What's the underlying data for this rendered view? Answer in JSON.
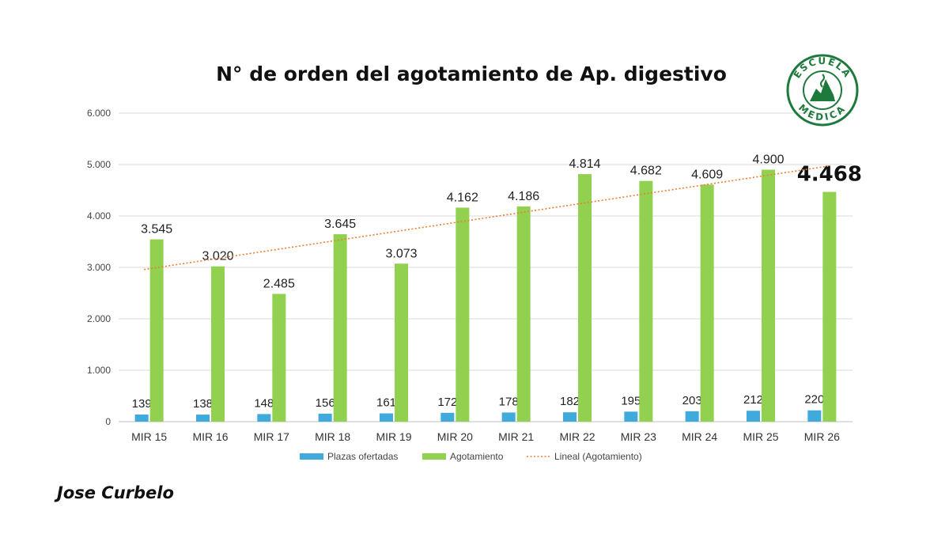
{
  "chart_data": {
    "type": "bar",
    "title": "N° de orden del agotamiento de Ap. digestivo",
    "categories": [
      "MIR 15",
      "MIR 16",
      "MIR 17",
      "MIR 18",
      "MIR 19",
      "MIR 20",
      "MIR 21",
      "MIR 22",
      "MIR 23",
      "MIR 24",
      "MIR 25",
      "MIR 26"
    ],
    "series": [
      {
        "name": "Plazas ofertadas",
        "color": "#41aadc",
        "values": [
          139,
          138,
          148,
          156,
          161,
          172,
          178,
          182,
          195,
          203,
          212,
          220
        ],
        "labels": [
          "139",
          "138",
          "148",
          "156",
          "161",
          "172",
          "178",
          "182",
          "195",
          "203",
          "212",
          "220"
        ]
      },
      {
        "name": "Agotamiento",
        "color": "#92d050",
        "values": [
          3545,
          3020,
          2485,
          3645,
          3073,
          4162,
          4186,
          4814,
          4682,
          4609,
          4900,
          4468
        ],
        "labels": [
          "3.545",
          "3.020",
          "2.485",
          "3.645",
          "3.073",
          "4.162",
          "4.186",
          "4.814",
          "4.682",
          "4.609",
          "4.900",
          "4.468"
        ]
      }
    ],
    "trendline": {
      "name": "Lineal (Agotamiento)",
      "type": "linear",
      "of": "Agotamiento",
      "color": "#ed7d31"
    },
    "ylim": [
      0,
      6000
    ],
    "yticks": [
      0,
      1000,
      2000,
      3000,
      4000,
      5000,
      6000
    ],
    "ytick_labels": [
      "0",
      "1.000",
      "2.000",
      "3.000",
      "4.000",
      "5.000",
      "6.000"
    ],
    "grid": true,
    "legend": "bottom"
  },
  "logo": {
    "text_top": "ESCUELA",
    "text_bottom": "MEDICA",
    "color": "#1e7a3c"
  },
  "author": "Jose Curbelo"
}
